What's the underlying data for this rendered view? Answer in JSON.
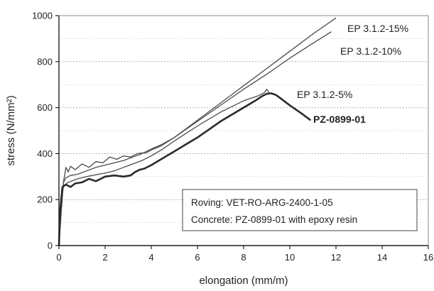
{
  "chart_data": {
    "type": "line",
    "xlabel": "elongation (mm/m)",
    "ylabel": "stress (N/mm²)",
    "xlim": [
      0,
      16
    ],
    "ylim": [
      0,
      1000
    ],
    "xticks": [
      "0",
      "2",
      "4",
      "6",
      "8",
      "10",
      "12",
      "14",
      "16"
    ],
    "yticks": [
      "0",
      "200",
      "400",
      "600",
      "800",
      "1000"
    ],
    "grid": true,
    "series": [
      {
        "name": "EP 3.1.2-15%",
        "color": "#4a4a4a",
        "points": [
          [
            0,
            0
          ],
          [
            0.1,
            150
          ],
          [
            0.2,
            280
          ],
          [
            0.3,
            340
          ],
          [
            0.4,
            320
          ],
          [
            0.5,
            345
          ],
          [
            0.7,
            330
          ],
          [
            1.0,
            355
          ],
          [
            1.3,
            340
          ],
          [
            1.6,
            365
          ],
          [
            1.9,
            360
          ],
          [
            2.2,
            385
          ],
          [
            2.5,
            375
          ],
          [
            2.8,
            390
          ],
          [
            3.1,
            385
          ],
          [
            3.4,
            400
          ],
          [
            3.8,
            405
          ],
          [
            4.1,
            420
          ],
          [
            4.4,
            432
          ],
          [
            5.0,
            470
          ],
          [
            6.0,
            545
          ],
          [
            7.0,
            620
          ],
          [
            8.0,
            695
          ],
          [
            9.0,
            770
          ],
          [
            10.0,
            845
          ],
          [
            11.0,
            920
          ],
          [
            12.0,
            990
          ]
        ]
      },
      {
        "name": "EP 3.1.2-10%",
        "color": "#4a4a4a",
        "points": [
          [
            0,
            0
          ],
          [
            0.1,
            180
          ],
          [
            0.2,
            275
          ],
          [
            0.3,
            295
          ],
          [
            0.5,
            305
          ],
          [
            0.8,
            310
          ],
          [
            1.2,
            325
          ],
          [
            1.6,
            340
          ],
          [
            2.0,
            350
          ],
          [
            2.4,
            360
          ],
          [
            2.8,
            370
          ],
          [
            3.2,
            385
          ],
          [
            3.6,
            400
          ],
          [
            4.0,
            420
          ],
          [
            4.4,
            437
          ],
          [
            5.0,
            470
          ],
          [
            6.0,
            540
          ],
          [
            7.0,
            610
          ],
          [
            8.0,
            680
          ],
          [
            9.0,
            745
          ],
          [
            10.0,
            815
          ],
          [
            11.0,
            880
          ],
          [
            11.8,
            930
          ]
        ]
      },
      {
        "name": "EP 3.1.2-5%",
        "color": "#4a4a4a",
        "points": [
          [
            0,
            0
          ],
          [
            0.1,
            200
          ],
          [
            0.2,
            260
          ],
          [
            0.4,
            275
          ],
          [
            0.8,
            290
          ],
          [
            1.2,
            300
          ],
          [
            1.6,
            308
          ],
          [
            2.0,
            315
          ],
          [
            2.4,
            325
          ],
          [
            2.8,
            340
          ],
          [
            3.2,
            355
          ],
          [
            3.6,
            370
          ],
          [
            4.0,
            390
          ],
          [
            4.5,
            420
          ],
          [
            5.0,
            455
          ],
          [
            6.0,
            520
          ],
          [
            7.0,
            580
          ],
          [
            8.0,
            630
          ],
          [
            8.6,
            650
          ],
          [
            8.9,
            665
          ],
          [
            9.0,
            680
          ],
          [
            9.1,
            665
          ]
        ]
      },
      {
        "name": "PZ-0899-01",
        "color": "#2a2a2a",
        "bold": true,
        "points": [
          [
            0,
            0
          ],
          [
            0.05,
            150
          ],
          [
            0.15,
            255
          ],
          [
            0.3,
            265
          ],
          [
            0.5,
            255
          ],
          [
            0.7,
            270
          ],
          [
            1.0,
            275
          ],
          [
            1.3,
            290
          ],
          [
            1.6,
            280
          ],
          [
            2.0,
            300
          ],
          [
            2.4,
            305
          ],
          [
            2.8,
            300
          ],
          [
            3.1,
            305
          ],
          [
            3.3,
            320
          ],
          [
            3.5,
            330
          ],
          [
            3.7,
            335
          ],
          [
            4.0,
            350
          ],
          [
            4.5,
            380
          ],
          [
            5.0,
            410
          ],
          [
            5.5,
            440
          ],
          [
            6.0,
            470
          ],
          [
            6.5,
            505
          ],
          [
            7.0,
            540
          ],
          [
            7.5,
            570
          ],
          [
            8.0,
            600
          ],
          [
            8.5,
            630
          ],
          [
            8.8,
            650
          ],
          [
            9.0,
            660
          ],
          [
            9.2,
            662
          ],
          [
            9.4,
            655
          ],
          [
            9.6,
            640
          ],
          [
            10.0,
            610
          ],
          [
            10.5,
            575
          ],
          [
            10.9,
            545
          ]
        ]
      }
    ],
    "box": {
      "lines": [
        "Roving: VET-RO-ARG-2400-1-05",
        "Concrete: PZ-0899-01 with epoxy resin"
      ]
    }
  }
}
